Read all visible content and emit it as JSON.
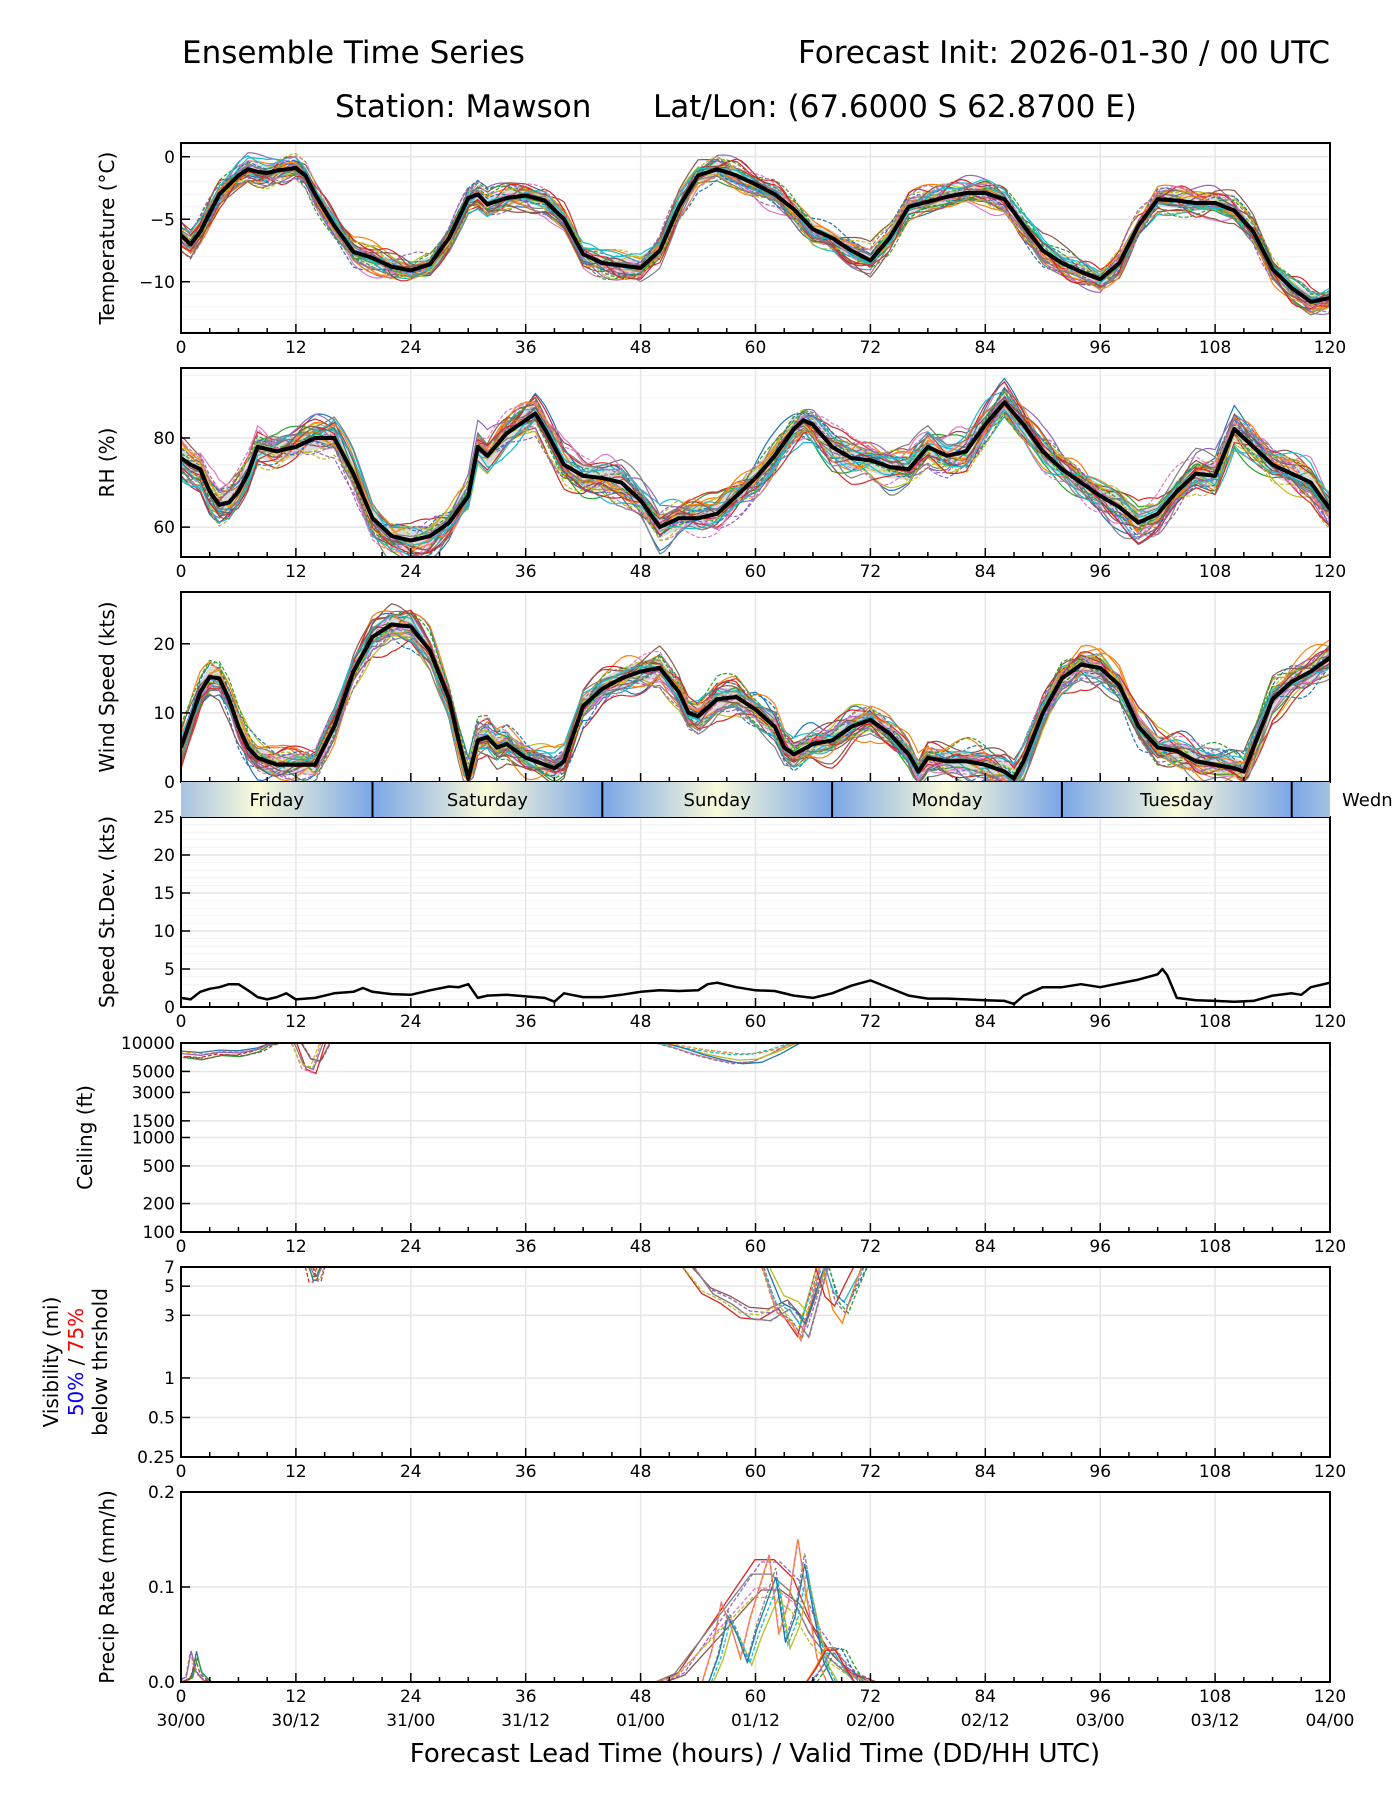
{
  "header": {
    "title_left": "Ensemble Time Series",
    "title_right": "Forecast Init: 2026-01-30 / 00 UTC",
    "subtitle_station": "Station: Mawson",
    "subtitle_latlon": "Lat/Lon: (67.6000 S 62.8700 E)"
  },
  "xaxis": {
    "label": "Forecast Lead Time (hours) / Valid Time (DD/HH UTC)",
    "ticks": [
      0,
      12,
      24,
      36,
      48,
      60,
      72,
      84,
      96,
      108,
      120
    ],
    "valid_labels": [
      "30/00",
      "30/12",
      "31/00",
      "31/12",
      "01/00",
      "01/12",
      "02/00",
      "02/12",
      "03/00",
      "03/12",
      "04/00"
    ],
    "range": [
      0,
      120
    ]
  },
  "day_bar": {
    "days": [
      {
        "label": "Friday",
        "start": 0,
        "end": 20
      },
      {
        "label": "Saturday",
        "start": 20,
        "end": 44
      },
      {
        "label": "Sunday",
        "start": 44,
        "end": 68
      },
      {
        "label": "Monday",
        "start": 68,
        "end": 92
      },
      {
        "label": "Tuesday",
        "start": 92,
        "end": 116
      },
      {
        "label": "Wedn",
        "start": 116,
        "end": 140
      }
    ],
    "edge_color": "#7aa6e6",
    "center_color": "#fbfbd9"
  },
  "colors": {
    "mean_line": "#000000",
    "spread_fill": "#d9d9d9",
    "grid": "#e6e6e6",
    "members": [
      "#1f77b4",
      "#ff7f0e",
      "#2ca02c",
      "#d62728",
      "#9467bd",
      "#8c564b",
      "#e377c2",
      "#7f7f7f",
      "#bcbd22",
      "#17becf"
    ],
    "vis_50": "#0000ff",
    "vis_75": "#ff0000"
  },
  "chart_data": [
    {
      "id": "temperature",
      "type": "line",
      "ylabel": "Temperature (°C)",
      "ylim": [
        -14.1,
        1.1
      ],
      "yticks": [
        0,
        -5,
        -10
      ],
      "ytick_labels": [
        "0",
        "−5",
        "−10"
      ],
      "grid": true,
      "mean": {
        "x": [
          0,
          1,
          2,
          4,
          6,
          7,
          8,
          9,
          10,
          12,
          13,
          14,
          16,
          18,
          20,
          22,
          24,
          26,
          28,
          30,
          31,
          32,
          34,
          36,
          38,
          40,
          42,
          44,
          46,
          48,
          50,
          52,
          54,
          56,
          58,
          60,
          62,
          64,
          66,
          68,
          70,
          72,
          74,
          76,
          78,
          80,
          82,
          84,
          86,
          88,
          90,
          92,
          94,
          96,
          98,
          100,
          102,
          104,
          106,
          108,
          110,
          112,
          114,
          116,
          118,
          120
        ],
        "y": [
          -6.3,
          -7.0,
          -6.0,
          -3.0,
          -1.5,
          -1.0,
          -1.2,
          -1.3,
          -1.1,
          -0.9,
          -1.5,
          -3.0,
          -5.5,
          -7.6,
          -8.1,
          -8.8,
          -9.1,
          -8.6,
          -6.5,
          -3.3,
          -3.0,
          -3.8,
          -3.3,
          -3.1,
          -3.5,
          -5.0,
          -7.8,
          -8.5,
          -8.7,
          -8.9,
          -7.5,
          -4.0,
          -1.5,
          -1.0,
          -1.5,
          -2.2,
          -3.0,
          -4.2,
          -5.8,
          -6.5,
          -7.5,
          -8.3,
          -6.5,
          -4.0,
          -3.6,
          -3.2,
          -2.9,
          -2.9,
          -3.4,
          -5.5,
          -7.5,
          -8.5,
          -9.2,
          -9.8,
          -8.5,
          -5.5,
          -3.4,
          -3.5,
          -3.7,
          -3.7,
          -4.3,
          -6.0,
          -9.0,
          -10.5,
          -11.6,
          -11.3
        ]
      },
      "spread_half_width": 0.6,
      "member_count": 30
    },
    {
      "id": "rh",
      "type": "line",
      "ylabel": "RH (%)",
      "ylim": [
        53.3,
        95.7
      ],
      "yticks": [
        80,
        60
      ],
      "ytick_labels": [
        "80",
        "60"
      ],
      "grid": true,
      "mean": {
        "x": [
          0,
          1,
          2,
          3,
          4,
          5,
          6,
          7,
          8,
          10,
          12,
          14,
          16,
          18,
          20,
          22,
          24,
          26,
          28,
          30,
          31,
          32,
          34,
          36,
          37,
          38,
          40,
          42,
          44,
          46,
          48,
          50,
          52,
          54,
          56,
          58,
          60,
          62,
          64,
          65,
          66,
          68,
          70,
          72,
          74,
          76,
          78,
          80,
          82,
          84,
          86,
          88,
          90,
          92,
          94,
          96,
          98,
          100,
          102,
          104,
          106,
          108,
          110,
          112,
          114,
          116,
          118,
          120
        ],
        "y": [
          75.5,
          74,
          73,
          68,
          65,
          65.5,
          68,
          72,
          78,
          77,
          78,
          80,
          80,
          72,
          62,
          58,
          57,
          58,
          61,
          67,
          78,
          76,
          81,
          84,
          85.5,
          82,
          74,
          71.5,
          71,
          70,
          66,
          60,
          62,
          62,
          63,
          67,
          71,
          76,
          82,
          84,
          83,
          78,
          75.5,
          75,
          73.5,
          73,
          78,
          76,
          77,
          83,
          88,
          83,
          77,
          73,
          70,
          67,
          64.5,
          61,
          63,
          68,
          72,
          71.5,
          82,
          78,
          74,
          72,
          70,
          64
        ]
      },
      "spread_half_width": 2.5,
      "member_count": 30
    },
    {
      "id": "wind_speed",
      "type": "line",
      "ylabel": "Wind Speed (kts)",
      "ylim": [
        0,
        27.5
      ],
      "yticks": [
        0,
        10,
        20
      ],
      "ytick_labels": [
        "0",
        "10",
        "20"
      ],
      "grid": true,
      "mean": {
        "x": [
          0,
          1,
          2,
          3,
          4,
          5,
          6,
          7,
          8,
          10,
          12,
          14,
          16,
          18,
          20,
          22,
          24,
          26,
          28,
          29,
          30,
          31,
          32,
          33,
          34,
          36,
          38,
          39,
          40,
          42,
          44,
          46,
          48,
          50,
          52,
          53,
          54,
          56,
          58,
          60,
          62,
          63,
          64,
          66,
          68,
          70,
          72,
          74,
          76,
          77,
          78,
          80,
          82,
          84,
          86,
          87,
          88,
          90,
          92,
          94,
          96,
          98,
          100,
          102,
          104,
          106,
          108,
          110,
          111,
          112,
          114,
          116,
          118,
          120
        ],
        "y": [
          5,
          9,
          13,
          15.2,
          15,
          12,
          8,
          5,
          3.5,
          2.5,
          2.5,
          2.5,
          8,
          16,
          21,
          22.8,
          22.5,
          19,
          12,
          6,
          0.5,
          6,
          6.5,
          5,
          5.5,
          3.5,
          2.5,
          2.0,
          3.0,
          11,
          13.5,
          15,
          16,
          16.5,
          13,
          10,
          9.5,
          12,
          12.3,
          10.5,
          8,
          5,
          4.0,
          5.5,
          6,
          8,
          9,
          7,
          4,
          1.5,
          3.5,
          3,
          3,
          2.5,
          1.5,
          0.5,
          3,
          10,
          15,
          17,
          16.5,
          14,
          8,
          5,
          4.5,
          3,
          2.5,
          2,
          1.5,
          5,
          12,
          14.5,
          16,
          18
        ]
      },
      "spread_half_width": 1.5,
      "member_count": 30
    },
    {
      "id": "speed_stdev",
      "type": "line",
      "ylabel": "Speed St.Dev. (kts)",
      "ylim": [
        0,
        25
      ],
      "yticks": [
        0,
        5,
        10,
        15,
        20,
        25
      ],
      "ytick_labels": [
        "0",
        "5",
        "10",
        "15",
        "20",
        "25"
      ],
      "grid": true,
      "series": {
        "x": [
          0,
          1,
          2,
          3,
          4,
          5,
          6,
          7,
          8,
          9,
          10,
          11,
          12,
          14,
          16,
          18,
          19,
          20,
          22,
          24,
          26,
          28,
          29,
          30,
          31,
          32,
          34,
          36,
          38,
          39,
          40,
          42,
          44,
          46,
          48,
          50,
          52,
          54,
          55,
          56,
          58,
          60,
          62,
          64,
          66,
          68,
          70,
          72,
          74,
          76,
          78,
          80,
          82,
          84,
          86,
          87,
          88,
          90,
          92,
          94,
          96,
          98,
          100,
          102,
          102.5,
          103,
          104,
          106,
          108,
          110,
          112,
          114,
          116,
          117,
          118,
          120
        ],
        "y": [
          1.2,
          1.0,
          2.0,
          2.4,
          2.6,
          3.0,
          3.0,
          2.2,
          1.3,
          1.0,
          1.3,
          1.8,
          1.0,
          1.2,
          1.8,
          2.0,
          2.5,
          2.0,
          1.7,
          1.6,
          2.2,
          2.7,
          2.6,
          3.0,
          1.2,
          1.5,
          1.6,
          1.4,
          1.2,
          0.7,
          1.8,
          1.3,
          1.3,
          1.6,
          2.0,
          2.2,
          2.1,
          2.2,
          3.0,
          3.2,
          2.6,
          2.2,
          2.1,
          1.5,
          1.2,
          1.8,
          2.8,
          3.5,
          2.5,
          1.5,
          1.1,
          1.1,
          1.0,
          0.9,
          0.8,
          0.4,
          1.5,
          2.6,
          2.6,
          3.0,
          2.6,
          3.1,
          3.6,
          4.3,
          5.0,
          4.2,
          1.2,
          0.9,
          0.8,
          0.7,
          0.8,
          1.5,
          1.8,
          1.6,
          2.6,
          3.2
        ]
      }
    },
    {
      "id": "ceiling",
      "type": "line",
      "ylabel": "Ceiling (ft)",
      "yscale": "log",
      "ylim": [
        100,
        10000
      ],
      "yticks": [
        10000,
        5000,
        3000,
        1500,
        1000,
        500,
        200,
        100
      ],
      "ytick_labels": [
        "10000",
        "5000",
        "3000",
        "1500",
        "1000",
        "500",
        "200",
        "100"
      ],
      "grid": true,
      "features": [
        {
          "x": [
            0,
            2,
            4,
            6,
            8,
            9,
            10
          ],
          "y": [
            7200,
            6800,
            7500,
            7300,
            8200,
            9500,
            10000
          ]
        },
        {
          "x": [
            12,
            13,
            14,
            15
          ],
          "y": [
            10000,
            5500,
            5000,
            10000
          ]
        },
        {
          "x": [
            50,
            52,
            54,
            56,
            58,
            60,
            62,
            64
          ],
          "y": [
            10000,
            8800,
            7600,
            6800,
            6200,
            6400,
            7800,
            10000
          ]
        }
      ]
    },
    {
      "id": "visibility",
      "type": "line",
      "ylabel": "Visibility (mi)",
      "ylabel_line2_50": "50%",
      "ylabel_line2_sep": " / ",
      "ylabel_line2_75": "75%",
      "ylabel_line3": "below thrshold",
      "yscale": "log",
      "ylim": [
        0.25,
        7
      ],
      "yticks": [
        7,
        5,
        3,
        1,
        0.5,
        0.25
      ],
      "ytick_labels": [
        "7",
        "5",
        "3",
        "1",
        "0.5",
        "0.25"
      ],
      "grid": true,
      "features": [
        {
          "x": [
            13.2,
            13.6,
            14,
            14.4
          ],
          "y": [
            7,
            5.5,
            5.5,
            7
          ]
        },
        {
          "x": [
            53,
            55,
            57,
            59,
            61,
            63,
            65,
            67
          ],
          "y": [
            7,
            4.5,
            3.8,
            3.0,
            2.9,
            3.5,
            2.2,
            7
          ]
        },
        {
          "x": [
            61,
            62.5,
            64,
            65,
            66,
            67
          ],
          "y": [
            7,
            3.0,
            2.5,
            1.8,
            3.5,
            7
          ]
        },
        {
          "x": [
            67,
            68,
            69,
            70,
            71
          ],
          "y": [
            7,
            3.5,
            2.8,
            4.5,
            7
          ]
        }
      ]
    },
    {
      "id": "precip_rate",
      "type": "line",
      "ylabel": "Precip Rate (mm/h)",
      "ylim": [
        0,
        0.2
      ],
      "yticks": [
        0.0,
        0.1,
        0.2
      ],
      "ytick_labels": [
        "0.0",
        "0.1",
        "0.2"
      ],
      "grid": true,
      "features": [
        {
          "x": [
            0,
            1,
            1.5,
            2,
            3
          ],
          "y": [
            0,
            0.005,
            0.03,
            0.01,
            0
          ]
        },
        {
          "x": [
            50,
            52,
            54,
            56,
            58,
            60,
            62,
            64,
            66,
            68,
            70,
            72
          ],
          "y": [
            0,
            0.01,
            0.04,
            0.07,
            0.1,
            0.13,
            0.13,
            0.11,
            0.06,
            0.03,
            0.01,
            0
          ]
        },
        {
          "x": [
            55,
            56,
            57,
            58,
            59,
            60,
            61,
            62,
            63,
            64,
            65,
            66,
            67,
            68
          ],
          "y": [
            0,
            0.04,
            0.1,
            0.07,
            0.03,
            0.08,
            0.12,
            0.16,
            0.06,
            0.1,
            0.18,
            0.1,
            0.03,
            0
          ]
        },
        {
          "x": [
            66,
            67,
            68,
            69,
            70,
            71
          ],
          "y": [
            0,
            0.02,
            0.045,
            0.045,
            0.02,
            0
          ]
        }
      ]
    }
  ]
}
